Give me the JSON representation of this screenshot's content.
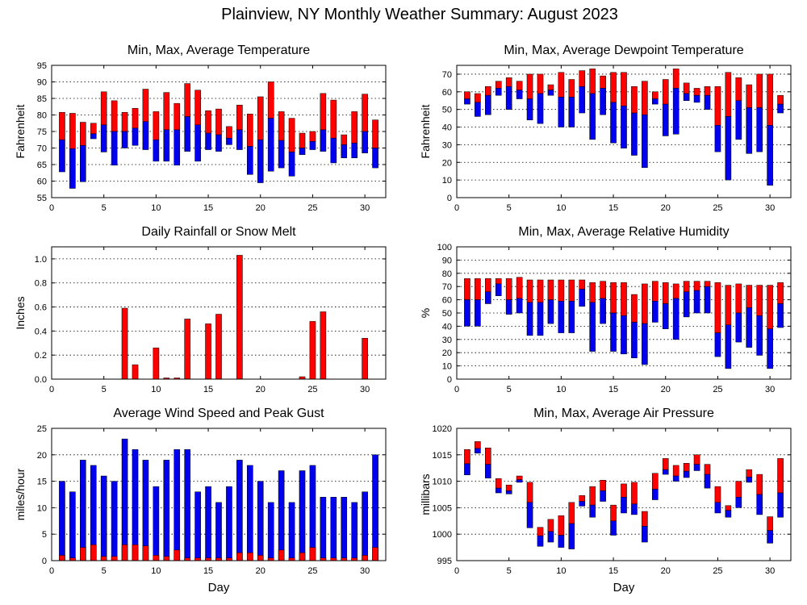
{
  "figure_title": "Plainview, NY Monthly Weather Summary: August 2023",
  "colors": {
    "red": "#ff0000",
    "blue": "#0000ee",
    "outline": "#000000"
  },
  "chart_data": [
    {
      "id": "temp",
      "type": "bar",
      "title": "Min, Max, Average Temperature",
      "xlabel": "",
      "ylabel": "Fahrenheit",
      "xlim": [
        0,
        32
      ],
      "ylim": [
        55,
        95
      ],
      "xticks": [
        0,
        5,
        10,
        15,
        20,
        25,
        30
      ],
      "yticks": [
        55,
        60,
        65,
        70,
        75,
        80,
        85,
        90,
        95
      ],
      "grid": true,
      "days": [
        1,
        2,
        3,
        4,
        5,
        6,
        7,
        8,
        9,
        10,
        11,
        12,
        13,
        14,
        15,
        16,
        17,
        18,
        19,
        20,
        21,
        22,
        23,
        24,
        25,
        26,
        27,
        28,
        29,
        30,
        31
      ],
      "min": [
        62.8,
        57.8,
        59.8,
        72.8,
        68.8,
        64.8,
        70.0,
        70.8,
        69.5,
        66.0,
        66.0,
        64.8,
        69.0,
        66.0,
        69.5,
        69.0,
        71.0,
        69.5,
        62.0,
        59.5,
        63.0,
        64.0,
        61.5,
        68.0,
        69.5,
        69.0,
        65.5,
        67.0,
        67.0,
        68.5,
        64.0
      ],
      "avg": [
        72.5,
        69.8,
        70.8,
        74.3,
        77.0,
        75.0,
        75.0,
        76.0,
        78.0,
        72.5,
        75.5,
        75.5,
        79.5,
        77.0,
        74.5,
        74.0,
        73.0,
        75.5,
        70.5,
        72.5,
        79.0,
        72.3,
        68.8,
        70.0,
        72.0,
        75.5,
        73.0,
        71.0,
        71.5,
        75.0,
        70.0
      ],
      "max": [
        80.8,
        80.5,
        77.8,
        77.5,
        87.0,
        84.3,
        80.8,
        82.0,
        87.8,
        81.0,
        86.8,
        83.5,
        89.5,
        87.5,
        81.3,
        81.8,
        76.5,
        83.0,
        80.3,
        85.5,
        90.0,
        81.0,
        79.0,
        74.5,
        75.0,
        86.5,
        84.5,
        74.0,
        81.0,
        86.3,
        78.5
      ]
    },
    {
      "id": "dewpoint",
      "type": "bar",
      "title": "Min, Max, Average Dewpoint Temperature",
      "xlabel": "",
      "ylabel": "Fahrenheit",
      "xlim": [
        0,
        32
      ],
      "ylim": [
        0,
        75
      ],
      "xticks": [
        0,
        5,
        10,
        15,
        20,
        25,
        30
      ],
      "yticks": [
        0,
        10,
        20,
        30,
        40,
        50,
        60,
        70
      ],
      "grid": true,
      "days": [
        1,
        2,
        3,
        4,
        5,
        6,
        7,
        8,
        9,
        10,
        11,
        12,
        13,
        14,
        15,
        16,
        17,
        18,
        19,
        20,
        21,
        22,
        23,
        24,
        25,
        26,
        27,
        28,
        29,
        30,
        31
      ],
      "min": [
        53,
        46,
        47,
        58,
        50,
        56,
        44,
        42,
        58,
        40,
        40,
        48,
        33,
        47,
        31,
        28,
        24,
        17,
        53,
        35,
        36,
        55,
        54,
        50,
        26,
        10,
        33,
        25,
        26,
        7,
        48
      ],
      "avg": [
        56,
        54,
        58,
        62,
        63,
        61,
        56,
        59,
        61,
        57,
        57,
        63,
        59,
        62,
        54,
        52,
        48,
        47,
        56,
        53,
        62,
        59,
        58,
        58,
        41,
        46,
        55,
        51,
        51,
        41,
        53
      ],
      "max": [
        60,
        59,
        63,
        66,
        68,
        66,
        70,
        70,
        64,
        71,
        67,
        72,
        73,
        69,
        71,
        71,
        63,
        66,
        60,
        67,
        73,
        65,
        62,
        63,
        63,
        71,
        68,
        64,
        70,
        70,
        58
      ]
    },
    {
      "id": "rain",
      "type": "bar",
      "title": "Daily Rainfall or Snow Melt",
      "xlabel": "",
      "ylabel": "Inches",
      "xlim": [
        0,
        32
      ],
      "ylim": [
        0,
        1.1
      ],
      "xticks": [
        0,
        5,
        10,
        15,
        20,
        25,
        30
      ],
      "yticks": [
        0,
        0.2,
        0.4,
        0.6,
        0.8,
        1.0
      ],
      "ytick_labels": [
        "0.0",
        "0.2",
        "0.4",
        "0.6",
        "0.8",
        "1.0"
      ],
      "grid": true,
      "days": [
        1,
        2,
        3,
        4,
        5,
        6,
        7,
        8,
        9,
        10,
        11,
        12,
        13,
        14,
        15,
        16,
        17,
        18,
        19,
        20,
        21,
        22,
        23,
        24,
        25,
        26,
        27,
        28,
        29,
        30,
        31
      ],
      "values": [
        0,
        0,
        0,
        0,
        0,
        0,
        0.59,
        0.12,
        0,
        0.26,
        0.01,
        0.01,
        0.5,
        0,
        0.46,
        0.54,
        0,
        1.03,
        0,
        0,
        0,
        0,
        0,
        0.02,
        0.48,
        0.56,
        0,
        0,
        0,
        0.34,
        0
      ]
    },
    {
      "id": "humidity",
      "type": "bar",
      "title": "Min, Max, Average Relative Humidity",
      "xlabel": "",
      "ylabel": "%",
      "xlim": [
        0,
        32
      ],
      "ylim": [
        0,
        100
      ],
      "xticks": [
        0,
        5,
        10,
        15,
        20,
        25,
        30
      ],
      "yticks": [
        0,
        10,
        20,
        30,
        40,
        50,
        60,
        70,
        80,
        90,
        100
      ],
      "grid": true,
      "days": [
        1,
        2,
        3,
        4,
        5,
        6,
        7,
        8,
        9,
        10,
        11,
        12,
        13,
        14,
        15,
        16,
        17,
        18,
        19,
        20,
        21,
        22,
        23,
        24,
        25,
        26,
        27,
        28,
        29,
        30,
        31
      ],
      "min": [
        40,
        40,
        57,
        63,
        49,
        50,
        33,
        33,
        42,
        35,
        35,
        55,
        21,
        42,
        21,
        19,
        16,
        11,
        43,
        38,
        30,
        47,
        50,
        50,
        17,
        8,
        28,
        24,
        18,
        8,
        39
      ],
      "avg": [
        60,
        60,
        66,
        72,
        60,
        61,
        58,
        58,
        60,
        59,
        59,
        68,
        58,
        61,
        50,
        48,
        43,
        42,
        59,
        57,
        61,
        66,
        67,
        70,
        35,
        41,
        50,
        54,
        48,
        38,
        57
      ],
      "max": [
        76,
        76,
        76,
        76,
        76,
        77,
        75,
        75,
        75,
        75,
        75,
        75,
        73,
        74,
        73,
        73,
        64,
        72,
        74,
        73,
        72,
        74,
        74,
        74,
        73,
        71,
        72,
        71,
        71,
        71,
        73
      ]
    },
    {
      "id": "wind",
      "type": "bar",
      "title": "Average Wind Speed and Peak Gust",
      "xlabel": "Day",
      "ylabel": "miles/hour",
      "xlim": [
        0,
        32
      ],
      "ylim": [
        0,
        25
      ],
      "xticks": [
        0,
        5,
        10,
        15,
        20,
        25,
        30
      ],
      "yticks": [
        0,
        5,
        10,
        15,
        20,
        25
      ],
      "grid": true,
      "days": [
        1,
        2,
        3,
        4,
        5,
        6,
        7,
        8,
        9,
        10,
        11,
        12,
        13,
        14,
        15,
        16,
        17,
        18,
        19,
        20,
        21,
        22,
        23,
        24,
        25,
        26,
        27,
        28,
        29,
        30,
        31
      ],
      "avg": [
        1.0,
        0.5,
        2.5,
        3.0,
        0.8,
        0.8,
        3.0,
        3.0,
        2.8,
        1.0,
        0.8,
        2.0,
        0.5,
        0.5,
        0.5,
        0.5,
        0.5,
        1.5,
        1.5,
        1.0,
        0.5,
        2.0,
        0.5,
        1.5,
        2.5,
        0.5,
        0.5,
        0.5,
        0.5,
        1.0,
        2.5
      ],
      "gust": [
        15,
        13,
        19,
        18,
        16,
        15,
        23,
        21,
        19,
        14,
        19,
        21,
        21,
        13,
        14,
        11,
        14,
        19,
        18,
        15,
        11,
        17,
        11,
        17,
        18,
        12,
        12,
        12,
        11,
        13,
        20
      ]
    },
    {
      "id": "pressure",
      "type": "bar",
      "title": "Min, Max, Average Air Pressure",
      "xlabel": "Day",
      "ylabel": "millibars",
      "xlim": [
        0,
        32
      ],
      "ylim": [
        995,
        1020
      ],
      "xticks": [
        0,
        5,
        10,
        15,
        20,
        25,
        30
      ],
      "yticks": [
        995,
        1000,
        1005,
        1010,
        1015,
        1020
      ],
      "grid": true,
      "days": [
        1,
        2,
        3,
        4,
        5,
        6,
        7,
        8,
        9,
        10,
        11,
        12,
        13,
        14,
        15,
        16,
        17,
        18,
        19,
        20,
        21,
        22,
        23,
        24,
        25,
        26,
        27,
        28,
        29,
        30,
        31
      ],
      "min": [
        1011.2,
        1015.3,
        1010.6,
        1007.8,
        1007.6,
        1009.8,
        1001.2,
        997.7,
        998.5,
        997.5,
        997.2,
        1005.3,
        1003.2,
        1006.2,
        999.8,
        1004.0,
        1003.7,
        998.5,
        1006.5,
        1011.3,
        1010.0,
        1010.7,
        1012.0,
        1008.7,
        1004.0,
        1003.2,
        1005.0,
        1009.8,
        1003.7,
        998.3,
        1003.2
      ],
      "avg": [
        1013.3,
        1016.2,
        1013.2,
        1008.7,
        1008.2,
        1010.3,
        1006.0,
        999.7,
        1000.5,
        999.8,
        1002.0,
        1006.2,
        1005.5,
        1008.2,
        1002.5,
        1007.0,
        1005.7,
        1001.5,
        1008.5,
        1012.2,
        1011.0,
        1011.9,
        1013.2,
        1011.3,
        1006.0,
        1004.5,
        1007.0,
        1010.8,
        1007.5,
        1000.7,
        1007.8
      ],
      "max": [
        1016.0,
        1017.5,
        1016.3,
        1010.5,
        1009.3,
        1011.0,
        1009.8,
        1001.3,
        1002.8,
        1003.5,
        1006.0,
        1007.3,
        1009.0,
        1010.2,
        1005.5,
        1009.5,
        1009.8,
        1004.3,
        1011.5,
        1014.3,
        1013.0,
        1013.4,
        1015.0,
        1013.2,
        1009.0,
        1005.4,
        1010.0,
        1012.2,
        1011.3,
        1003.3,
        1014.3
      ]
    }
  ]
}
